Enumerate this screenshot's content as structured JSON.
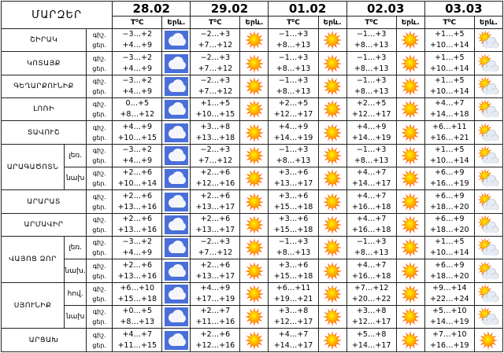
{
  "header": {
    "title": "ՄԱՐԶԵՐ",
    "dates": [
      "28.02",
      "29.02",
      "01.02",
      "02.03",
      "03.03"
    ],
    "temp_label": "T⁰C",
    "icon_label": "Երև."
  },
  "labels": {
    "night": "գիշ.",
    "day": "ցեր."
  },
  "regions": [
    {
      "name": "ՇԻՐԱԿ",
      "rows": [
        {
          "night": [
            "−3…+2",
            "−2…+3",
            "−1…+3",
            "−1…+3",
            "+1…+5"
          ],
          "day": [
            "+4…+9",
            "+7…+12",
            "+8…+13",
            "+8…+13",
            "+10…+14"
          ]
        }
      ]
    },
    {
      "name": "ԿՈՏԱՅՔ",
      "rows": [
        {
          "night": [
            "−3…+2",
            "−2…+3",
            "−1…+3",
            "−1…+3",
            "+1…+5"
          ],
          "day": [
            "+4…+9",
            "+7…+12",
            "+8…+13",
            "+8…+13",
            "+10…+14"
          ]
        }
      ]
    },
    {
      "name": "ԳԵՂԱՐՔՈՒՆԻՔ",
      "rows": [
        {
          "night": [
            "−3…+2",
            "−2…+3",
            "−1…+3",
            "−1…+3",
            "+1…+5"
          ],
          "day": [
            "+4…+9",
            "+7…+12",
            "+8…+13",
            "+8…+13",
            "+10…+14"
          ]
        }
      ]
    },
    {
      "name": "ԼՈՌԻ",
      "rows": [
        {
          "night": [
            "0…+5",
            "+1…+5",
            "+2…+5",
            "+2…+5",
            "+4…+7"
          ],
          "day": [
            "+8…+12",
            "+10…+15",
            "+12…+17",
            "+12…+17",
            "+14…+18"
          ]
        }
      ]
    },
    {
      "name": "ՏԱՎՈՒՇ",
      "rows": [
        {
          "night": [
            "+4…+9",
            "+3…+8",
            "+4…+9",
            "+4…+9",
            "+6…+11"
          ],
          "day": [
            "+10…+15",
            "+13…+18",
            "+14…+19",
            "+14…+19",
            "+16…+21"
          ]
        }
      ]
    },
    {
      "name": "ԱՐԱԳԱԾՈՏՆ",
      "rows": [
        {
          "sub": "լեռ.",
          "night": [
            "−3…+2",
            "−2…+3",
            "−1…+3",
            "−1…+3",
            "+1…+5"
          ],
          "day": [
            "+4…+9",
            "+7…+12",
            "+8…+13",
            "+8…+13",
            "+10…+14"
          ]
        },
        {
          "sub": "նախ",
          "night": [
            "+2…+6",
            "+2…+6",
            "+3…+6",
            "+4…+7",
            "+6…+9"
          ],
          "day": [
            "+10…+14",
            "+12…+16",
            "+13…+17",
            "+14…+17",
            "+16…+19"
          ]
        }
      ]
    },
    {
      "name": "ԱՐԱՐԱՏ",
      "rows": [
        {
          "night": [
            "+2…+6",
            "+2…+6",
            "+3…+6",
            "+4…+7",
            "+6…+9"
          ],
          "day": [
            "+13…+16",
            "+13…+17",
            "+15…+18",
            "+16…+18",
            "+18…+20"
          ]
        }
      ]
    },
    {
      "name": "ԱՐՄԱՎԻՐ",
      "rows": [
        {
          "night": [
            "+2…+6",
            "+2…+6",
            "+3…+6",
            "+4…+7",
            "+6…+9"
          ],
          "day": [
            "+13…+16",
            "+13…+17",
            "+15…+18",
            "+16…+18",
            "+18…+20"
          ]
        }
      ]
    },
    {
      "name": "ՎԱՅՈՑ ՁՈՐ",
      "rows": [
        {
          "sub": "լեռ.",
          "night": [
            "−3…+2",
            "−2…+3",
            "−1…+3",
            "−1…+3",
            "+1…+5"
          ],
          "day": [
            "+4…+9",
            "+7…+12",
            "+8…+13",
            "+8…+13",
            "+10…+14"
          ]
        },
        {
          "sub": "նախ.",
          "night": [
            "+2…+6",
            "+2…+6",
            "+3…+6",
            "+4…+7",
            "+6…+9"
          ],
          "day": [
            "+13…+16",
            "+13…+17",
            "+15…+18",
            "+16…+18",
            "+18…+20"
          ]
        }
      ]
    },
    {
      "name": "ՍՅՈՒՆԻՔ",
      "rows": [
        {
          "sub": "հով.",
          "night": [
            "+6…+10",
            "+4…+9",
            "+6…+11",
            "+7…+12",
            "+9…+14"
          ],
          "day": [
            "+15…+18",
            "+17…+19",
            "+19…+21",
            "+20…+22",
            "+22…+24"
          ]
        },
        {
          "sub": "նախ",
          "night": [
            "+0…+5",
            "+2…+7",
            "+3…+8",
            "+3…+8",
            "+5…+10"
          ],
          "day": [
            "+8…+13",
            "+11…+16",
            "+12…+17",
            "+12…+17",
            "+14…+19"
          ]
        }
      ]
    },
    {
      "name": "ԱՐՑԱԽ",
      "rows": [
        {
          "night": [
            "+4…+7",
            "+2…+6",
            "+4…+7",
            "+5…+8",
            "+7…+10"
          ],
          "day": [
            "+11…+15",
            "+12…+16",
            "+14…+17",
            "+14…+17",
            "+16…+19"
          ]
        }
      ]
    }
  ]
}
